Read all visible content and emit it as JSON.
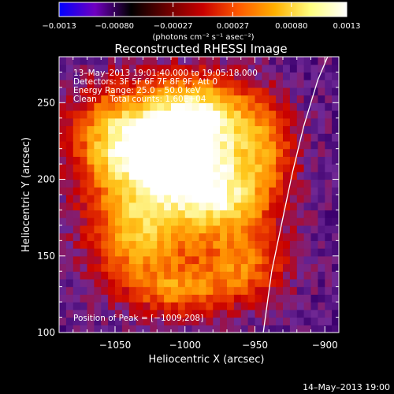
{
  "chart_data": {
    "type": "heatmap",
    "title": "Reconstructed RHESSI Image",
    "xlabel": "Heliocentric X (arcsec)",
    "ylabel": "Heliocentric Y (arcsec)",
    "xlim": [
      -1090,
      -890
    ],
    "ylim": [
      100,
      280
    ],
    "x_ticks": [
      -1050,
      -1000,
      -950,
      -900
    ],
    "x_tick_labels": [
      "−1050",
      "−1000",
      "−950",
      "−900"
    ],
    "y_ticks": [
      100,
      150,
      200,
      250
    ],
    "y_tick_labels": [
      "100",
      "150",
      "200",
      "250"
    ],
    "colorbar": {
      "range": [
        -0.0013,
        0.0013
      ],
      "ticks": [
        -0.0013,
        -0.0008,
        -0.00027,
        0.00027,
        0.0008,
        0.0013
      ],
      "tick_labels": [
        "−0.0013",
        "−0.00080",
        "−0.00027",
        "0.00027",
        "0.00080",
        "0.0013"
      ],
      "units": "(photons cm⁻² s⁻¹ asec⁻²)",
      "colormap": [
        "#0000ff",
        "#7000c0",
        "#000000",
        "#6a0000",
        "#c80000",
        "#ff5a00",
        "#ffb000",
        "#ffff80",
        "#ffffff"
      ]
    },
    "annotations": {
      "time_range": "13–May–2013 19:01:40.000 to 19:05:18.000",
      "detectors": "Detectors: 3F 5F 6F 7F 8F 9F, Att 0",
      "energy": "Energy Range: 25.0 – 50.0 keV",
      "clean": "Clean     Total counts: 1.60E+04",
      "peak": "Position of Peak = [−1009,208]"
    },
    "peak_position": [
      -1009,
      208
    ],
    "sources": [
      {
        "x": -1010,
        "y": 212,
        "sx": 32,
        "sy": 26,
        "amp": 1.0
      },
      {
        "x": -975,
        "y": 185,
        "sx": 22,
        "sy": 16,
        "amp": 0.55
      },
      {
        "x": -1035,
        "y": 160,
        "sx": 26,
        "sy": 22,
        "amp": 0.6
      },
      {
        "x": -960,
        "y": 145,
        "sx": 22,
        "sy": 18,
        "amp": 0.5
      },
      {
        "x": -990,
        "y": 240,
        "sx": 28,
        "sy": 18,
        "amp": 0.6
      },
      {
        "x": -1055,
        "y": 225,
        "sx": 22,
        "sy": 24,
        "amp": 0.5
      },
      {
        "x": -945,
        "y": 215,
        "sx": 16,
        "sy": 22,
        "amp": 0.38
      },
      {
        "x": -1005,
        "y": 125,
        "sx": 26,
        "sy": 12,
        "amp": 0.45
      }
    ],
    "limb_curve": [
      [
        -944,
        100
      ],
      [
        -938,
        140
      ],
      [
        -930,
        175
      ],
      [
        -923,
        205
      ],
      [
        -915,
        235
      ],
      [
        -905,
        265
      ],
      [
        -898,
        280
      ]
    ],
    "footer": "14–May–2013 19:00"
  }
}
